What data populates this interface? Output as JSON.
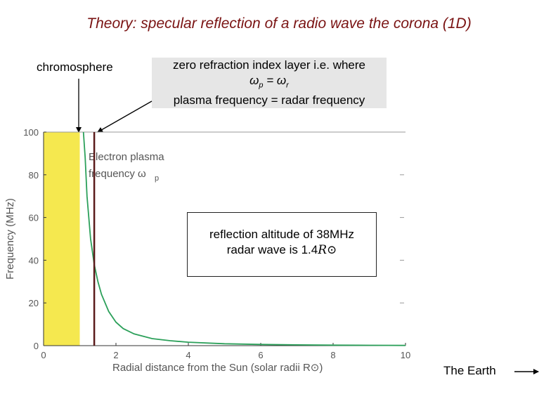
{
  "title": "Theory: specular reflection of a radio wave the corona (1D)",
  "annotations": {
    "chromosphere": "chromosphere",
    "callout_line1": "zero refraction index layer i.e. where",
    "callout_eq_left": "ω",
    "callout_eq_left_sub": "p",
    "callout_eq_mid": " = ω",
    "callout_eq_right_sub": "r",
    "callout_line3": "plasma frequency = radar frequency",
    "reflection_line1": "reflection altitude of 38MHz",
    "reflection_line2": "radar wave is 1.4",
    "reflection_unit": "R⊙",
    "earth_label": "The Earth"
  },
  "chart_data": {
    "type": "line",
    "xlabel": "Radial distance from the Sun (solar radii R⊙)",
    "ylabel": "Frequency (MHz)",
    "xlim": [
      0,
      10
    ],
    "ylim": [
      0,
      100
    ],
    "x_ticks": [
      "0",
      "2",
      "4",
      "6",
      "8",
      "10"
    ],
    "y_ticks": [
      "0",
      "20",
      "40",
      "60",
      "80",
      "100"
    ],
    "series": [
      {
        "name": "Electron plasma frequency ωp",
        "color": "#2ca05a",
        "x": [
          1.1,
          1.15,
          1.2,
          1.3,
          1.4,
          1.5,
          1.6,
          1.8,
          2.0,
          2.2,
          2.5,
          3.0,
          3.5,
          4.0,
          5.0,
          6.0,
          7.0,
          8.0,
          9.0,
          10.0
        ],
        "y": [
          100,
          88,
          70,
          50,
          38,
          30,
          24,
          16,
          11,
          8,
          5.5,
          3.3,
          2.3,
          1.6,
          0.9,
          0.55,
          0.35,
          0.22,
          0.15,
          0.1
        ]
      }
    ],
    "shaded_region": {
      "x": [
        0,
        1
      ],
      "color": "#f5e84f"
    },
    "vertical_marker": {
      "x": 1.4,
      "color": "#5a1a1a"
    },
    "series_annotation": {
      "line1": "Electron plasma",
      "line2": "frequency ω",
      "sub": "p"
    }
  }
}
